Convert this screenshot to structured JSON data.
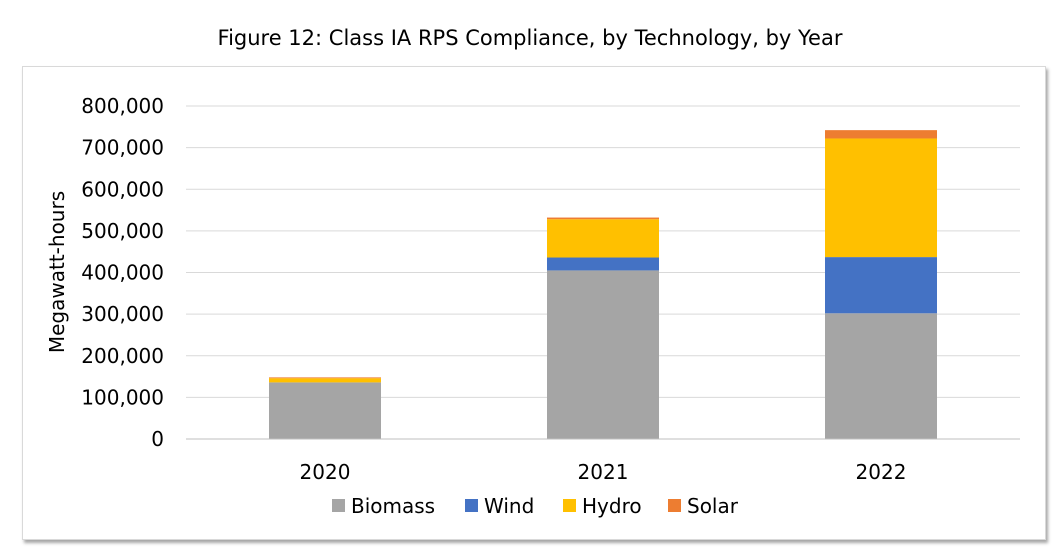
{
  "title": "Figure 12: Class IA RPS Compliance, by Technology, by Year",
  "chart_data": {
    "type": "bar",
    "stacked": true,
    "categories": [
      "2020",
      "2021",
      "2022"
    ],
    "series": [
      {
        "name": "Biomass",
        "color": "#a5a5a5",
        "values": [
          136000,
          405000,
          302000
        ]
      },
      {
        "name": "Wind",
        "color": "#4472c4",
        "values": [
          0,
          31000,
          135000
        ]
      },
      {
        "name": "Hydro",
        "color": "#ffc000",
        "values": [
          10000,
          92000,
          285000
        ]
      },
      {
        "name": "Solar",
        "color": "#ed7d31",
        "values": [
          2000,
          4000,
          20000
        ]
      }
    ],
    "xlabel": "",
    "ylabel": "Megawatt-hours",
    "ylim": [
      0,
      800000
    ],
    "yticks": [
      "0",
      "100,000",
      "200,000",
      "300,000",
      "400,000",
      "500,000",
      "600,000",
      "700,000",
      "800,000"
    ],
    "grid": true,
    "legend": "bottom"
  }
}
